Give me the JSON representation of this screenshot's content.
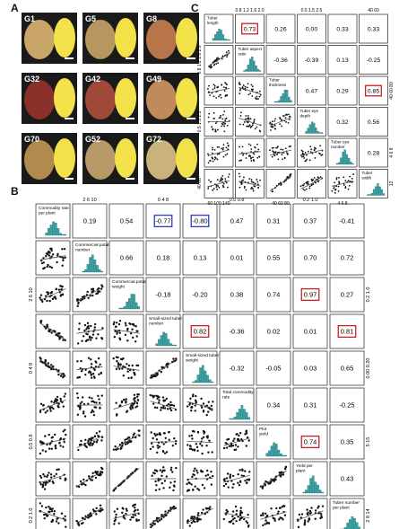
{
  "panel_labels": {
    "a": "A",
    "b": "B",
    "c": "C"
  },
  "photos": [
    {
      "label": "G1",
      "skin": "#caa56a"
    },
    {
      "label": "G5",
      "skin": "#b89660"
    },
    {
      "label": "G8",
      "skin": "#b8754a"
    },
    {
      "label": "G32",
      "skin": "#8b2f2a"
    },
    {
      "label": "G42",
      "skin": "#a0483a"
    },
    {
      "label": "G49",
      "skin": "#c08a5a"
    },
    {
      "label": "G70",
      "skin": "#b08a4e"
    },
    {
      "label": "G52",
      "skin": "#b89a68"
    },
    {
      "label": "G72",
      "skin": "#c9b27c"
    }
  ],
  "panel_b": {
    "traits": [
      "Commodity rate per plant",
      "Commercial potato number",
      "Commercial potato weight",
      "Small-sized tuber number",
      "Small-sized tuber weight",
      "Total commodity rate",
      "Plot yield",
      "Yield per plant",
      "Tuber number per plant"
    ],
    "correlations": [
      [
        null,
        "0.19",
        "0.54",
        "-0.77",
        "-0.80",
        "0.47",
        "0.31",
        "0.37",
        "-0.41"
      ],
      [
        null,
        null,
        "0.66",
        "0.18",
        "0.13",
        "0.01",
        "0.55",
        "0.70",
        "0.72"
      ],
      [
        null,
        null,
        null,
        "-0.18",
        "-0.20",
        "0.38",
        "0.74",
        "0.97",
        "0.27"
      ],
      [
        null,
        null,
        null,
        null,
        "0.82",
        "-0.36",
        "0.02",
        "0.01",
        "0.81"
      ],
      [
        null,
        null,
        null,
        null,
        null,
        "-0.32",
        "-0.05",
        "0.03",
        "0.65"
      ],
      [
        null,
        null,
        null,
        null,
        null,
        null,
        "0.34",
        "0.31",
        "-0.25"
      ],
      [
        null,
        null,
        null,
        null,
        null,
        null,
        null,
        "0.74",
        "0.35"
      ],
      [
        null,
        null,
        null,
        null,
        null,
        null,
        null,
        null,
        "0.43"
      ],
      [
        null,
        null,
        null,
        null,
        null,
        null,
        null,
        null,
        null
      ]
    ],
    "highlight_blue": [
      [
        0,
        3
      ],
      [
        0,
        4
      ]
    ],
    "highlight_red": [
      [
        2,
        7
      ],
      [
        3,
        4
      ],
      [
        3,
        8
      ],
      [
        6,
        7
      ]
    ],
    "top_ticks": [
      "",
      "2 6 10",
      "",
      "0 4 8",
      "",
      "0.5 0.8",
      "",
      "0.2 1.0",
      ""
    ],
    "bottom_ticks": [
      "0.6 0.8",
      "",
      "0.2 1.0",
      "",
      "0.00 0.25",
      "",
      "5 15",
      "",
      "2 8 14"
    ],
    "right_ticks": [
      "",
      "",
      "0.2 1.0",
      "",
      "0.00 0.20",
      "",
      "5 15",
      "",
      "2 8 14"
    ],
    "left_ticks": [
      "",
      "",
      "2 6 10",
      "",
      "0 4 8",
      "",
      "0.5 0.8",
      "",
      "0.2 1.0"
    ]
  },
  "panel_c": {
    "traits": [
      "Tuber length",
      "Tuber aspect ratio",
      "Tuber thickness",
      "Tuber eye depth",
      "Tuber eye number",
      "Tuber width"
    ],
    "correlations": [
      [
        null,
        "0.73",
        "0.26",
        "0.00",
        "0.33",
        "0.33"
      ],
      [
        null,
        null,
        "-0.36",
        "-0.39",
        "0.13",
        "-0.25"
      ],
      [
        null,
        null,
        null,
        "0.47",
        "0.29",
        "0.85"
      ],
      [
        null,
        null,
        null,
        null,
        "0.32",
        "0.56"
      ],
      [
        null,
        null,
        null,
        null,
        null,
        "0.28"
      ],
      [
        null,
        null,
        null,
        null,
        null,
        null
      ]
    ],
    "highlight_red": [
      [
        0,
        1
      ],
      [
        2,
        5
      ]
    ],
    "top_ticks": [
      "",
      "0.8 1.2 1.6 2.0",
      "",
      "0.5 1.5 2.5",
      "",
      "40 60"
    ],
    "bottom_ticks": [
      "60 100 140",
      "",
      "40 60 80",
      "",
      "4 6 8",
      ""
    ],
    "right_ticks": [
      "",
      "",
      "40 60 80",
      "",
      "4 6 8",
      "12"
    ],
    "left_ticks": [
      "",
      "0.8 1.2 1.6 2.0",
      "",
      "0.5 1.5 2.5",
      "",
      "40 60"
    ]
  },
  "colors": {
    "hist": "#3aa5a8",
    "blue": "#2a3cc8",
    "red": "#d02020",
    "line": "#222222"
  }
}
